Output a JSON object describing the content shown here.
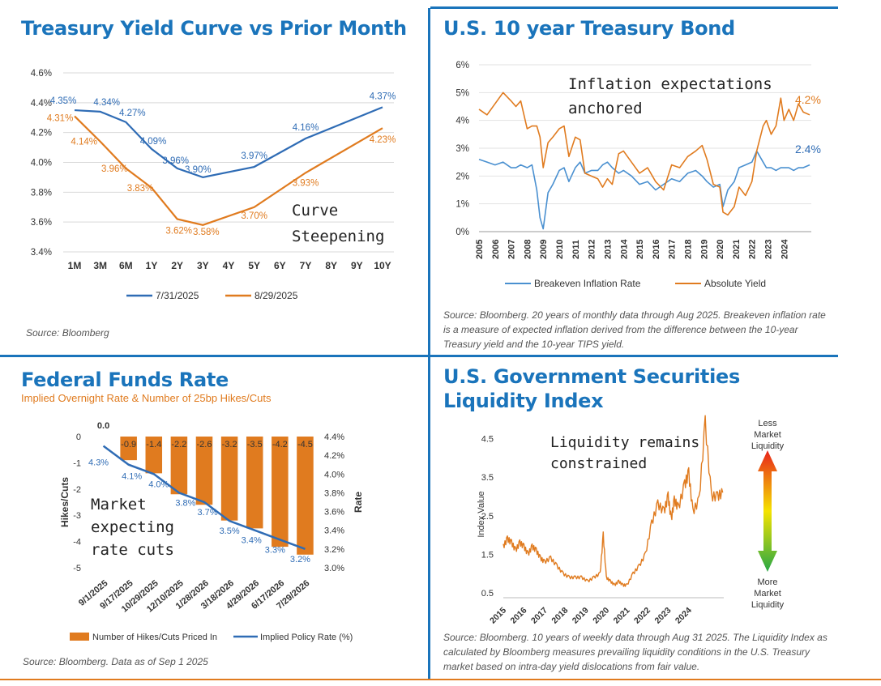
{
  "panels": {
    "yield_curve": {
      "title": "Treasury Yield Curve vs Prior Month",
      "source": "Source: Bloomberg",
      "annotation": [
        "Curve",
        "Steepening"
      ]
    },
    "ten_year": {
      "title": "U.S. 10 year Treasury Bond",
      "source": "Source: Bloomberg. 20 years of monthly data through Aug 2025. Breakeven inflation rate is a measure of expected inflation derived from the difference between the 10-year Treasury yield and the 10-year TIPS yield.",
      "annotation": [
        "Inflation expectations",
        "anchored"
      ]
    },
    "fed_funds": {
      "title": "Federal Funds Rate",
      "subtitle": "Implied Overnight Rate & Number of 25bp Hikes/Cuts",
      "source": "Source: Bloomberg. Data as of Sep 1 2025",
      "annotation": [
        "Market",
        "expecting",
        "rate cuts"
      ]
    },
    "liquidity": {
      "title": "U.S. Government Securities Liquidity Index",
      "source": "Source: Bloomberg. 10 years of weekly data through Aug 31 2025. The Liquidity Index as calculated by Bloomberg measures prevailing liquidity conditions in the U.S. Treasury market based on intra-day yield dislocations from fair value.",
      "annotation": [
        "Liquidity remains",
        "constrained"
      ],
      "less_label": [
        "Less",
        "Market",
        "Liquidity"
      ],
      "more_label": [
        "More",
        "Market",
        "Liquidity"
      ]
    }
  },
  "colors": {
    "blue": "#2f6cb5",
    "orange": "#e07b1f",
    "title_blue": "#1a74bb",
    "breakeven_blue": "#4a90d0"
  },
  "chart_data": [
    {
      "id": "yield_curve",
      "type": "line",
      "title": "Treasury Yield Curve vs Prior Month",
      "categories": [
        "1M",
        "3M",
        "6M",
        "1Y",
        "2Y",
        "3Y",
        "4Y",
        "5Y",
        "6Y",
        "7Y",
        "8Y",
        "9Y",
        "10Y"
      ],
      "x_positions": [
        0.0833,
        0.25,
        0.5,
        1,
        2,
        3,
        4,
        5,
        6,
        7,
        8,
        9,
        10
      ],
      "series": [
        {
          "name": "7/31/2025",
          "x": [
            0.0833,
            0.25,
            0.5,
            1,
            2,
            3,
            5,
            7,
            10
          ],
          "values": [
            4.35,
            4.34,
            4.27,
            4.09,
            3.96,
            3.9,
            3.97,
            4.16,
            4.37
          ]
        },
        {
          "name": "8/29/2025",
          "x": [
            0.0833,
            0.25,
            0.5,
            1,
            2,
            3,
            5,
            7,
            10
          ],
          "values": [
            4.31,
            4.14,
            3.96,
            3.83,
            3.62,
            3.58,
            3.7,
            3.93,
            4.23
          ]
        }
      ],
      "point_labels": {
        "7/31/2025": [
          "4.35%",
          "4.34%",
          "4.27%",
          "4.09%",
          "3.96%",
          "3.90%",
          "3.97%",
          "4.16%",
          "4.37%"
        ],
        "8/29/2025": [
          "4.31%",
          "4.14%",
          "3.96%",
          "3.83%",
          "3.62%",
          "3.58%",
          "3.70%",
          "3.93%",
          "4.23%"
        ]
      },
      "yticks": [
        "3.4%",
        "3.6%",
        "3.8%",
        "4.0%",
        "4.2%",
        "4.4%",
        "4.6%"
      ],
      "ylim": [
        3.4,
        4.6
      ],
      "legend": [
        "7/31/2025",
        "8/29/2025"
      ]
    },
    {
      "id": "ten_year",
      "type": "line",
      "title": "U.S. 10 year Treasury Bond",
      "x": [
        2005.0,
        2005.5,
        2006.0,
        2006.5,
        2007.0,
        2007.3,
        2007.6,
        2008.0,
        2008.3,
        2008.6,
        2008.8,
        2009.0,
        2009.3,
        2009.6,
        2010.0,
        2010.3,
        2010.6,
        2011.0,
        2011.3,
        2011.6,
        2012.0,
        2012.4,
        2012.7,
        2013.0,
        2013.3,
        2013.7,
        2014.0,
        2014.5,
        2015.0,
        2015.5,
        2016.0,
        2016.5,
        2017.0,
        2017.5,
        2018.0,
        2018.5,
        2018.9,
        2019.2,
        2019.6,
        2020.0,
        2020.2,
        2020.5,
        2020.9,
        2021.2,
        2021.6,
        2022.0,
        2022.3,
        2022.7,
        2022.9,
        2023.2,
        2023.5,
        2023.8,
        2024.0,
        2024.3,
        2024.6,
        2024.9,
        2025.2,
        2025.6
      ],
      "series": [
        {
          "name": "Breakeven Inflation Rate",
          "values": [
            2.6,
            2.5,
            2.4,
            2.5,
            2.3,
            2.3,
            2.4,
            2.3,
            2.4,
            1.5,
            0.5,
            0.1,
            1.4,
            1.7,
            2.2,
            2.3,
            1.8,
            2.3,
            2.5,
            2.1,
            2.2,
            2.2,
            2.4,
            2.5,
            2.3,
            2.1,
            2.2,
            2.0,
            1.7,
            1.8,
            1.5,
            1.7,
            1.9,
            1.8,
            2.1,
            2.2,
            2.0,
            1.8,
            1.6,
            1.7,
            0.9,
            1.5,
            1.8,
            2.3,
            2.4,
            2.5,
            2.9,
            2.5,
            2.3,
            2.3,
            2.2,
            2.3,
            2.3,
            2.3,
            2.2,
            2.3,
            2.3,
            2.4
          ]
        },
        {
          "name": "Absolute Yield",
          "values": [
            4.4,
            4.2,
            4.6,
            5.0,
            4.7,
            4.5,
            4.7,
            3.7,
            3.8,
            3.8,
            3.4,
            2.3,
            3.2,
            3.4,
            3.7,
            3.8,
            2.7,
            3.4,
            3.3,
            2.1,
            2.0,
            1.9,
            1.6,
            1.9,
            1.7,
            2.8,
            2.9,
            2.5,
            2.1,
            2.3,
            1.8,
            1.5,
            2.4,
            2.3,
            2.7,
            2.9,
            3.1,
            2.6,
            1.7,
            1.6,
            0.7,
            0.6,
            0.9,
            1.6,
            1.3,
            1.8,
            2.9,
            3.8,
            4.0,
            3.5,
            3.8,
            4.8,
            4.0,
            4.4,
            4.0,
            4.6,
            4.3,
            4.2
          ]
        }
      ],
      "end_labels": [
        "4.2%",
        "2.4%"
      ],
      "yticks": [
        "0%",
        "1%",
        "2%",
        "3%",
        "4%",
        "5%",
        "6%"
      ],
      "ylim": [
        0,
        6
      ],
      "xticks": [
        "2005",
        "2006",
        "2007",
        "2008",
        "2009",
        "2010",
        "2011",
        "2012",
        "2013",
        "2014",
        "2015",
        "2016",
        "2017",
        "2018",
        "2019",
        "2020",
        "2021",
        "2022",
        "2023",
        "2024"
      ],
      "legend": [
        "Breakeven Inflation Rate",
        "Absolute Yield"
      ]
    },
    {
      "id": "fed_funds",
      "type": "bar",
      "title": "Federal Funds Rate",
      "categories": [
        "9/1/2025",
        "9/17/2025",
        "10/29/2025",
        "12/10/2025",
        "1/28/2026",
        "3/18/2026",
        "4/29/2026",
        "6/17/2026",
        "7/29/2026"
      ],
      "series": [
        {
          "name": "Number of Hikes/Cuts Priced In",
          "axis": "left",
          "values": [
            0.0,
            -0.9,
            -1.4,
            -2.2,
            -2.6,
            -3.2,
            -3.5,
            -4.2,
            -4.5
          ],
          "labels": [
            "0.0",
            "-0.9",
            "-1.4",
            "-2.2",
            "-2.6",
            "-3.2",
            "-3.5",
            "-4.2",
            "-4.5"
          ]
        },
        {
          "name": "Implied Policy Rate (%)",
          "axis": "right",
          "type": "line",
          "values": [
            4.3,
            4.1,
            4.0,
            3.8,
            3.7,
            3.5,
            3.4,
            3.3,
            3.2
          ],
          "labels": [
            "4.3%",
            "4.1%",
            "4.0%",
            "3.8%",
            "3.7%",
            "3.5%",
            "3.4%",
            "3.3%",
            "3.2%"
          ]
        }
      ],
      "ylabel": "Hikes/Cuts",
      "y2label": "Rate",
      "yticks": [
        "0",
        "-1",
        "-2",
        "-3",
        "-4",
        "-5"
      ],
      "ylim": [
        -5,
        0
      ],
      "y2ticks": [
        "4.4%",
        "4.2%",
        "4.0%",
        "3.8%",
        "3.6%",
        "3.4%",
        "3.2%",
        "3.0%"
      ],
      "y2lim": [
        3.0,
        4.4
      ],
      "legend": [
        "Number of Hikes/Cuts Priced In",
        "Implied Policy Rate (%)"
      ]
    },
    {
      "id": "liquidity",
      "type": "line",
      "title": "U.S. Government Securities Liquidity Index",
      "x": [
        2015.0,
        2015.2,
        2015.4,
        2015.6,
        2015.8,
        2016.0,
        2016.2,
        2016.4,
        2016.6,
        2016.8,
        2017.0,
        2017.3,
        2017.6,
        2017.9,
        2018.2,
        2018.5,
        2018.8,
        2019.1,
        2019.4,
        2019.7,
        2019.85,
        2020.0,
        2020.2,
        2020.4,
        2020.6,
        2020.8,
        2021.0,
        2021.3,
        2021.6,
        2021.9,
        2022.2,
        2022.5,
        2022.8,
        2023.0,
        2023.15,
        2023.3,
        2023.5,
        2023.8,
        2024.0,
        2024.2,
        2024.5,
        2024.8,
        2025.1,
        2025.4,
        2025.65
      ],
      "series": [
        {
          "name": "Liquidity Index",
          "values": [
            1.7,
            1.9,
            1.8,
            1.6,
            1.8,
            1.7,
            1.5,
            1.7,
            1.6,
            1.4,
            1.3,
            1.4,
            1.2,
            1.0,
            0.9,
            0.9,
            0.9,
            0.8,
            0.9,
            1.0,
            2.0,
            0.9,
            0.8,
            0.7,
            0.8,
            0.7,
            0.7,
            1.0,
            1.2,
            1.5,
            2.3,
            2.8,
            2.6,
            3.0,
            2.4,
            2.9,
            2.7,
            3.3,
            3.6,
            2.6,
            2.9,
            4.9,
            3.0,
            3.0,
            3.1
          ]
        }
      ],
      "ylabel": "Index Value",
      "yticks": [
        "0.5",
        "1.5",
        "2.5",
        "3.5",
        "4.5"
      ],
      "ylim": [
        0.5,
        5.0
      ],
      "xticks": [
        "2015",
        "2016",
        "2017",
        "2018",
        "2019",
        "2020",
        "2021",
        "2022",
        "2023",
        "2024"
      ]
    }
  ]
}
